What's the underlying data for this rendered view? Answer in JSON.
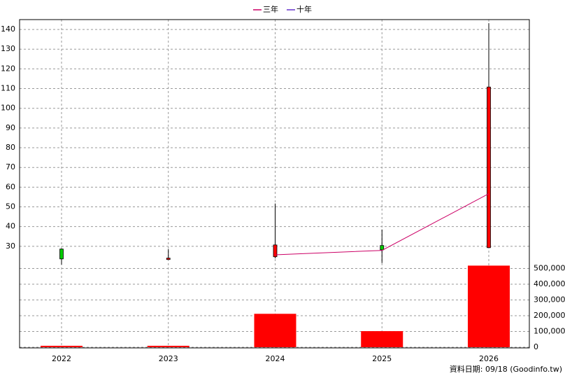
{
  "chart_data": {
    "type": "candlestick",
    "categories": [
      "2022",
      "2023",
      "2024",
      "2025",
      "2026"
    ],
    "open": [
      28.6,
      23.5,
      24.7,
      30.4,
      29.3
    ],
    "high": [
      28.9,
      28.6,
      51.7,
      38.5,
      143.2
    ],
    "low": [
      20.7,
      23.2,
      23.9,
      21.5,
      29.3
    ],
    "close": [
      23.6,
      24.0,
      30.7,
      28.2,
      110.8
    ],
    "up_color": "#ff0000",
    "down_color": "#00cc00",
    "ylim": [
      20,
      145
    ],
    "yticks": [
      30,
      40,
      50,
      60,
      70,
      80,
      90,
      100,
      110,
      120,
      130,
      140
    ],
    "series": [
      {
        "name": "三年",
        "color": "#cc0066",
        "values": [
          null,
          null,
          25.7,
          27.9,
          56.7
        ]
      },
      {
        "name": "十年",
        "color": "#6633cc",
        "values": [
          null,
          null,
          null,
          null,
          null
        ]
      }
    ],
    "volume": {
      "values": [
        9000,
        9000,
        212000,
        102000,
        518000
      ],
      "color": "#ff0000"
    },
    "y2lim": [
      0,
      520000
    ],
    "y2ticks": [
      0,
      {
        "value": 100000,
        "label": "100,000"
      },
      {
        "value": 200000,
        "label": "200,000"
      },
      {
        "value": 300000,
        "label": "300,000"
      },
      {
        "value": 400000,
        "label": "400,000"
      },
      {
        "value": 500000,
        "label": "500,000"
      }
    ],
    "grid": true,
    "footnote": "資料日期: 09/18  (Goodinfo.tw)"
  }
}
